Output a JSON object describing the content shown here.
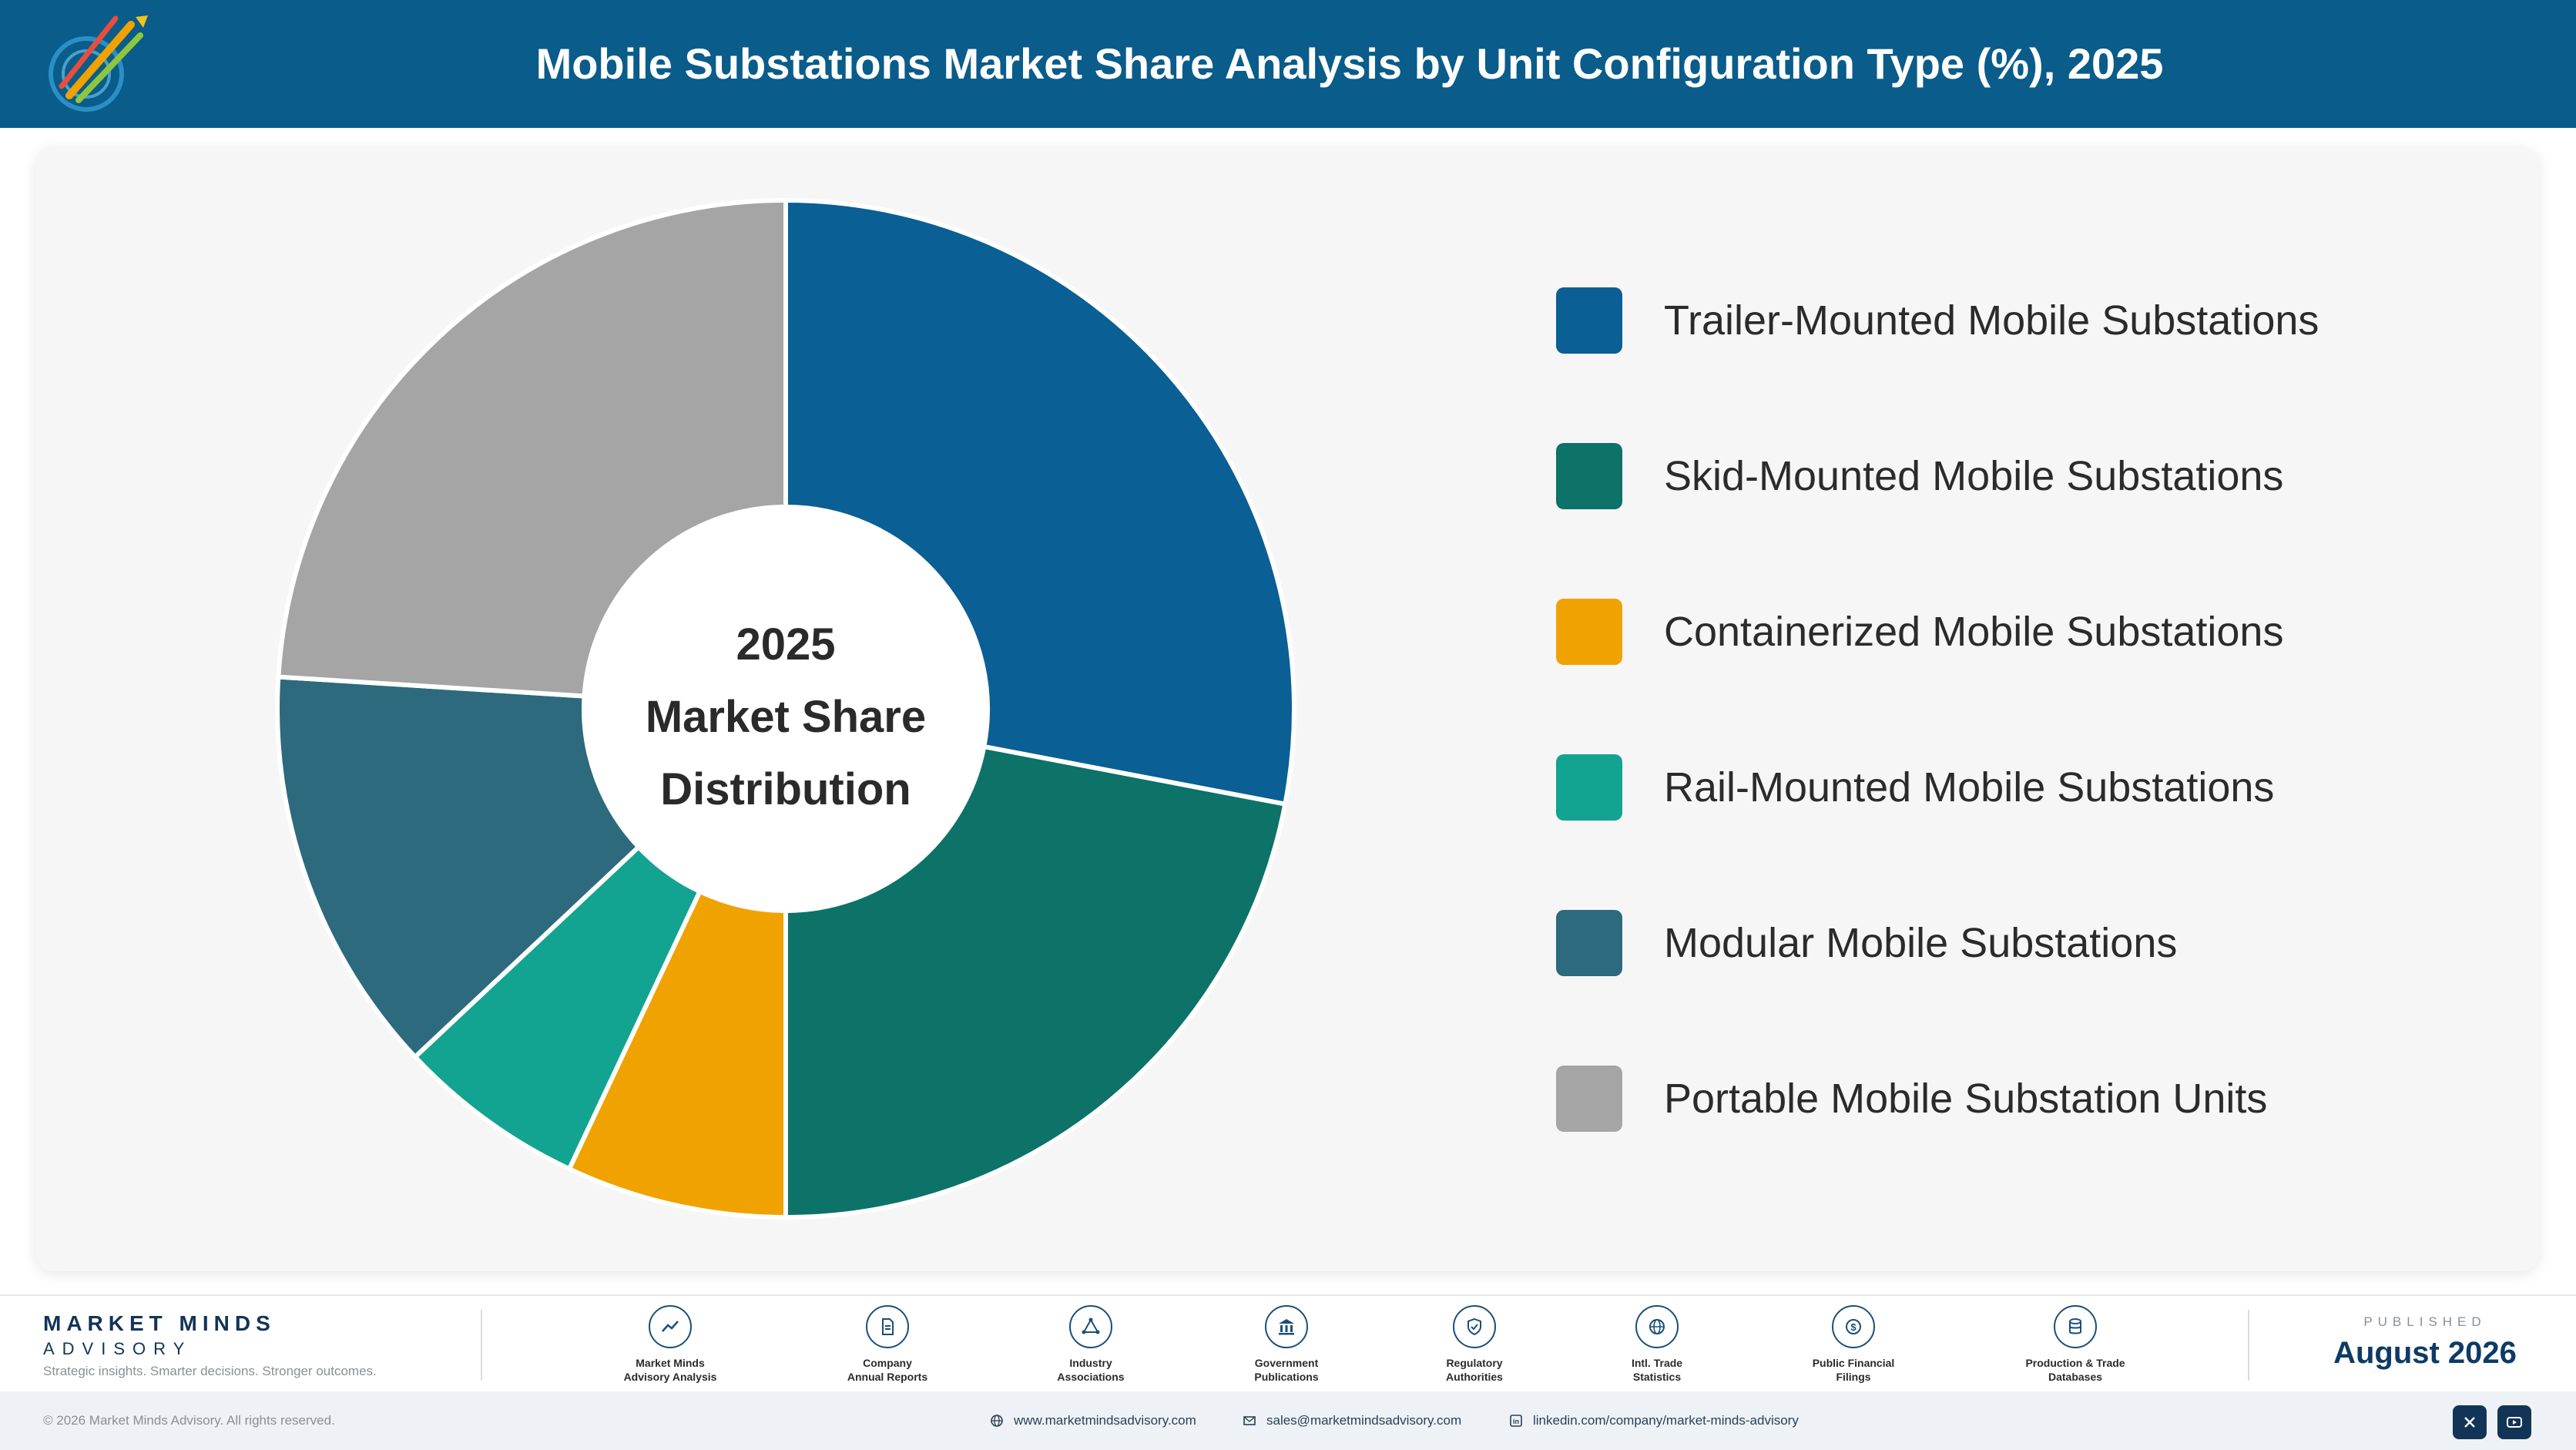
{
  "header": {
    "title": "Mobile Substations Market Share Analysis by Unit Configuration Type (%), 2025"
  },
  "center": {
    "line1": "2025",
    "line2": "Market Share",
    "line3": "Distribution"
  },
  "chart_data": {
    "type": "pie",
    "title": "Mobile Substations Market Share Analysis by Unit Configuration Type (%), 2025",
    "categories": [
      "Trailer-Mounted Mobile Substations",
      "Skid-Mounted Mobile Substations",
      "Containerized Mobile Substations",
      "Rail-Mounted Mobile Substations",
      "Modular Mobile Substations",
      "Portable Mobile Substation Units"
    ],
    "values": [
      28,
      22,
      7,
      6,
      13,
      24
    ],
    "colors": [
      "#0a5f94",
      "#0d7268",
      "#f0a200",
      "#13a391",
      "#2d6a7d",
      "#a5a5a5"
    ],
    "legend": "right",
    "donut": true
  },
  "footer": {
    "brand_name": "MARKET MINDS",
    "brand_sub": "ADVISORY",
    "brand_tagline": "Strategic insights. Smarter decisions. Stronger outcomes.",
    "sources": [
      {
        "label": "Market Minds\nAdvisory Analysis",
        "icon": "chart-line-icon"
      },
      {
        "label": "Company\nAnnual Reports",
        "icon": "document-icon"
      },
      {
        "label": "Industry\nAssociations",
        "icon": "network-icon"
      },
      {
        "label": "Government\nPublications",
        "icon": "bank-icon"
      },
      {
        "label": "Regulatory\nAuthorities",
        "icon": "shield-icon"
      },
      {
        "label": "Intl. Trade\nStatistics",
        "icon": "globe-icon"
      },
      {
        "label": "Public Financial\nFilings",
        "icon": "dollar-icon"
      },
      {
        "label": "Production & Trade\nDatabases",
        "icon": "database-icon"
      }
    ],
    "published_label": "PUBLISHED",
    "published_date": "August 2026",
    "copyright": "© 2026 Market Minds Advisory. All rights reserved.",
    "website": "www.marketmindsadvisory.com",
    "email": "sales@marketmindsadvisory.com",
    "linkedin": "linkedin.com/company/market-minds-advisory"
  }
}
